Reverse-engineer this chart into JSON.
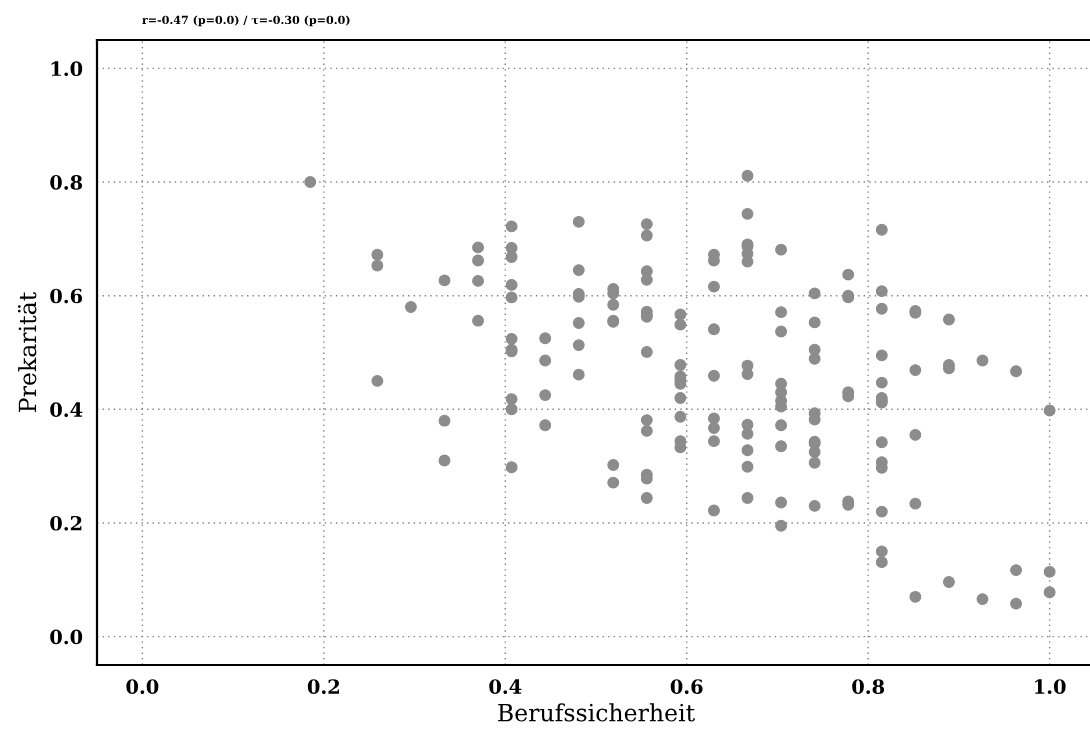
{
  "chart_data": {
    "type": "scatter",
    "title": "r=-0.47 (p=0.0) / τ=-0.30 (p=0.0)",
    "xlabel": "Berufssicherheit",
    "ylabel": "Prekarität",
    "xlim": [
      -0.05,
      1.05
    ],
    "ylim": [
      -0.05,
      1.05
    ],
    "xticks": [
      {
        "value": 0,
        "label": "0.0"
      },
      0.2,
      0.4,
      0.6,
      0.8,
      {
        "value": 1,
        "label": "1.0"
      }
    ],
    "yticks": [
      {
        "value": 0,
        "label": "0.0"
      },
      0.2,
      0.4,
      0.6,
      0.8,
      {
        "value": 1,
        "label": "1.0"
      }
    ],
    "grid": true,
    "marker": "circle",
    "series": [
      {
        "color": "#8c8c8c",
        "x": [
          0.185,
          0.259,
          0.259,
          0.259,
          0.296,
          0.333,
          0.333,
          0.333,
          0.37,
          0.37,
          0.37,
          0.37,
          0.407,
          0.407,
          0.407,
          0.407,
          0.407,
          0.407,
          0.407,
          0.407,
          0.407,
          0.407,
          0.407,
          0.444,
          0.444,
          0.444,
          0.444,
          0.481,
          0.481,
          0.481,
          0.481,
          0.481,
          0.481,
          0.481,
          0.519,
          0.519,
          0.519,
          0.519,
          0.519,
          0.519,
          0.519,
          0.556,
          0.556,
          0.556,
          0.556,
          0.556,
          0.556,
          0.556,
          0.556,
          0.556,
          0.556,
          0.556,
          0.556,
          0.556,
          0.593,
          0.593,
          0.593,
          0.593,
          0.593,
          0.593,
          0.593,
          0.593,
          0.593,
          0.593,
          0.63,
          0.63,
          0.63,
          0.63,
          0.63,
          0.63,
          0.63,
          0.63,
          0.63,
          0.667,
          0.667,
          0.667,
          0.667,
          0.667,
          0.667,
          0.667,
          0.667,
          0.667,
          0.667,
          0.667,
          0.667,
          0.667,
          0.704,
          0.704,
          0.704,
          0.704,
          0.704,
          0.704,
          0.704,
          0.704,
          0.704,
          0.704,
          0.704,
          0.741,
          0.741,
          0.741,
          0.741,
          0.741,
          0.741,
          0.741,
          0.741,
          0.741,
          0.741,
          0.741,
          0.778,
          0.778,
          0.778,
          0.778,
          0.778,
          0.778,
          0.778,
          0.815,
          0.815,
          0.815,
          0.815,
          0.815,
          0.815,
          0.815,
          0.815,
          0.815,
          0.815,
          0.815,
          0.815,
          0.815,
          0.815,
          0.852,
          0.852,
          0.852,
          0.852,
          0.852,
          0.852,
          0.889,
          0.889,
          0.889,
          0.889,
          0.926,
          0.926,
          0.963,
          0.963,
          0.963,
          1.0,
          1.0,
          1.0
        ],
        "values": [
          0.8,
          0.672,
          0.653,
          0.45,
          0.58,
          0.627,
          0.38,
          0.31,
          0.685,
          0.662,
          0.626,
          0.556,
          0.722,
          0.684,
          0.668,
          0.619,
          0.597,
          0.524,
          0.505,
          0.502,
          0.418,
          0.4,
          0.298,
          0.525,
          0.486,
          0.425,
          0.372,
          0.73,
          0.645,
          0.603,
          0.598,
          0.552,
          0.513,
          0.461,
          0.612,
          0.604,
          0.584,
          0.556,
          0.554,
          0.302,
          0.271,
          0.726,
          0.706,
          0.643,
          0.628,
          0.572,
          0.566,
          0.563,
          0.501,
          0.381,
          0.362,
          0.285,
          0.278,
          0.244,
          0.567,
          0.549,
          0.478,
          0.458,
          0.452,
          0.445,
          0.42,
          0.387,
          0.344,
          0.333,
          0.672,
          0.662,
          0.616,
          0.541,
          0.459,
          0.384,
          0.367,
          0.344,
          0.222,
          0.811,
          0.744,
          0.69,
          0.687,
          0.674,
          0.66,
          0.477,
          0.462,
          0.373,
          0.357,
          0.328,
          0.299,
          0.244,
          0.681,
          0.571,
          0.537,
          0.445,
          0.43,
          0.415,
          0.405,
          0.372,
          0.335,
          0.236,
          0.195,
          0.604,
          0.553,
          0.505,
          0.489,
          0.393,
          0.382,
          0.343,
          0.34,
          0.325,
          0.306,
          0.23,
          0.637,
          0.6,
          0.597,
          0.43,
          0.423,
          0.238,
          0.232,
          0.716,
          0.608,
          0.577,
          0.495,
          0.447,
          0.42,
          0.415,
          0.412,
          0.342,
          0.307,
          0.297,
          0.22,
          0.15,
          0.131,
          0.573,
          0.57,
          0.469,
          0.355,
          0.234,
          0.07,
          0.558,
          0.478,
          0.472,
          0.096,
          0.486,
          0.066,
          0.467,
          0.117,
          0.058,
          0.398,
          0.114,
          0.078
        ]
      }
    ]
  }
}
